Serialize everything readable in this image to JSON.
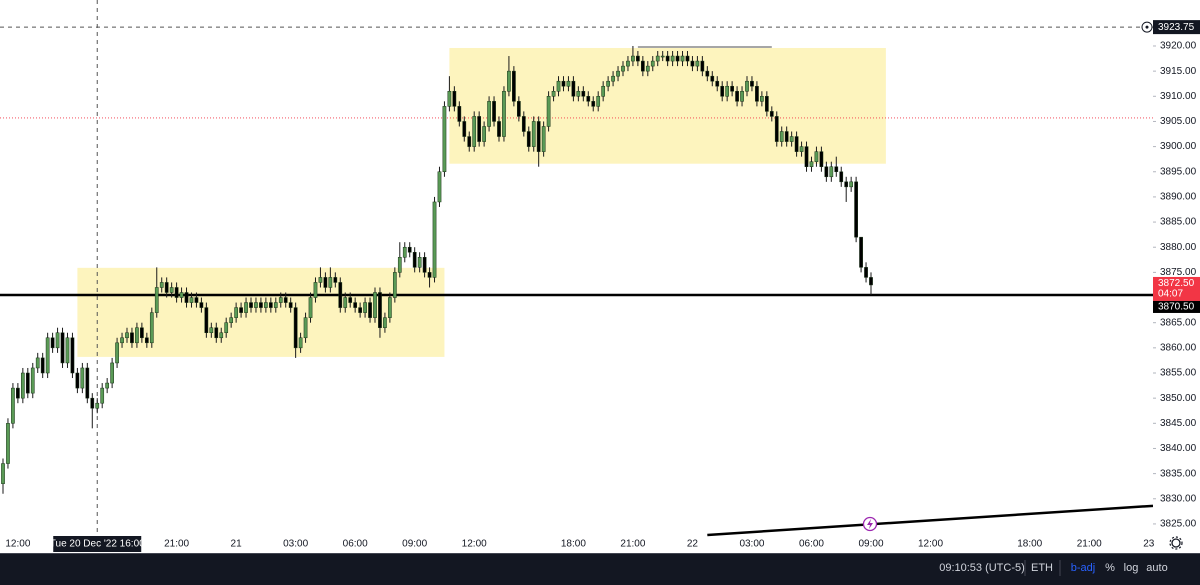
{
  "chart_data": {
    "type": "candlestick",
    "categories": [
      null,
      null,
      null,
      "12:00",
      null,
      null,
      null,
      null,
      null,
      null,
      null,
      null,
      null,
      null,
      null,
      null,
      null,
      null,
      null,
      "Tue 20 Dec '22  16:00",
      null,
      null,
      null,
      null,
      null,
      null,
      null,
      null,
      null,
      null,
      null,
      null,
      null,
      null,
      null,
      "21:00",
      null,
      null,
      null,
      null,
      null,
      null,
      null,
      null,
      null,
      null,
      null,
      "21",
      null,
      null,
      null,
      null,
      null,
      null,
      null,
      null,
      null,
      null,
      null,
      "03:00",
      null,
      null,
      null,
      null,
      null,
      null,
      null,
      null,
      null,
      null,
      null,
      "06:00",
      null,
      null,
      null,
      null,
      null,
      null,
      null,
      null,
      null,
      null,
      null,
      "09:00",
      null,
      null,
      null,
      null,
      null,
      null,
      null,
      null,
      null,
      null,
      null,
      "12:00",
      null,
      null,
      null,
      null,
      null,
      null,
      null,
      null,
      null,
      null,
      null,
      null,
      null,
      null,
      null,
      null,
      null,
      null,
      null,
      "18:00",
      null,
      null,
      null,
      null,
      null,
      null,
      null,
      null,
      null,
      null,
      null,
      "21:00",
      null,
      null,
      null,
      null,
      null,
      null,
      null,
      null,
      null,
      null,
      null,
      "22",
      null,
      null,
      null,
      null,
      null,
      null,
      null,
      null,
      null,
      null,
      null,
      "03:00",
      null,
      null,
      null,
      null,
      null,
      null,
      null,
      null,
      null,
      null,
      null,
      "06:00",
      null,
      null,
      null,
      null,
      null,
      null,
      null,
      null,
      null,
      null,
      null,
      "09:00",
      null,
      null,
      null,
      null,
      null,
      null,
      null,
      null,
      null,
      null,
      null,
      "12:00",
      null,
      null,
      null,
      null,
      null,
      null,
      null,
      null,
      null,
      null,
      null,
      null,
      null,
      null,
      null,
      null,
      null,
      null,
      null,
      "18:00",
      null,
      null,
      null,
      null,
      null,
      null,
      null,
      null,
      null,
      null,
      null,
      "21:00",
      null,
      null,
      null,
      null,
      null,
      null,
      null,
      null,
      null,
      null,
      null,
      "23"
    ],
    "open": [
      3833,
      3837,
      3845,
      3852,
      3850,
      3855,
      3851,
      3856,
      3858,
      3855,
      3862,
      3860,
      3863,
      3857,
      3862,
      3855,
      3852,
      3856,
      3850,
      3848,
      3849,
      3852,
      3853,
      3857,
      3861,
      3862,
      3863,
      3861,
      3864,
      3862,
      3861,
      3867,
      3872,
      3873,
      3871,
      3872,
      3870,
      3871,
      3869,
      3870,
      3869,
      3868,
      3863,
      3864,
      3862,
      3863,
      3865,
      3866,
      3868,
      3867,
      3869,
      3868,
      3869,
      3868,
      3869,
      3868,
      3869,
      3870,
      3869,
      3868,
      3860,
      3862,
      3866,
      3870,
      3873,
      3874,
      3872,
      3874,
      3873,
      3868,
      3870,
      3869,
      3868,
      3867,
      3869,
      3866,
      3871,
      3864,
      3866,
      3870,
      3875,
      3878,
      3880,
      3879,
      3876,
      3878,
      3875,
      3874,
      3889,
      3895,
      3908,
      3911,
      3908,
      3905,
      3902,
      3900,
      3906,
      3901,
      3904,
      3909,
      3905,
      3902,
      3911,
      3915,
      3909,
      3906,
      3903,
      3900,
      3905,
      3899,
      3904,
      3910,
      3911,
      3913,
      3912,
      3913,
      3910,
      3911,
      3910,
      3909,
      3908,
      3910,
      3912,
      3913,
      3914,
      3915,
      3916,
      3917,
      3918,
      3917,
      3915,
      3916,
      3917,
      3918,
      3918,
      3917,
      3918,
      3917,
      3918,
      3917,
      3916,
      3917,
      3915,
      3914,
      3913,
      3912,
      3910,
      3912,
      3911,
      3909,
      3911,
      3913,
      3912,
      3909,
      3910,
      3907,
      3906,
      3901,
      3903,
      3901,
      3902,
      3899,
      3900,
      3896,
      3897,
      3899,
      3896,
      3894,
      3896,
      3895,
      3893,
      3892,
      3893,
      3882,
      3876,
      3874,
      null,
      null,
      null,
      null,
      null,
      null,
      null,
      null,
      null,
      null,
      null,
      null,
      null,
      null,
      null,
      null,
      null,
      null,
      null,
      null,
      null,
      null,
      null,
      null,
      null,
      null,
      null,
      null,
      null,
      null,
      null,
      null,
      null,
      null,
      null,
      null,
      null,
      null,
      null,
      null,
      null,
      null,
      null,
      null,
      null,
      null,
      null,
      null,
      null,
      null,
      null,
      null,
      null,
      null,
      null,
      null
    ],
    "high": [
      3838,
      3846,
      3853,
      3853,
      3856,
      3856,
      3857,
      3859,
      3859,
      3863,
      3863,
      3864,
      3864,
      3863,
      3863,
      3856,
      3857,
      3857,
      3851,
      3850,
      3853,
      3854,
      3858,
      3862,
      3863,
      3864,
      3864,
      3865,
      3865,
      3863,
      3868,
      3876,
      3874,
      3874,
      3873,
      3873,
      3872,
      3872,
      3871,
      3871,
      3870,
      3869,
      3865,
      3865,
      3864,
      3866,
      3867,
      3869,
      3869,
      3870,
      3870,
      3870,
      3870,
      3870,
      3870,
      3870,
      3871,
      3871,
      3870,
      3869,
      3863,
      3867,
      3871,
      3874,
      3876,
      3875,
      3876,
      3875,
      3874,
      3871,
      3871,
      3870,
      3869,
      3870,
      3870,
      3872,
      3872,
      3867,
      3871,
      3876,
      3881,
      3881,
      3881,
      3880,
      3879,
      3879,
      3876,
      3890,
      3896,
      3909,
      3914,
      3912,
      3909,
      3906,
      3903,
      3907,
      3907,
      3905,
      3910,
      3910,
      3906,
      3912,
      3918,
      3916,
      3910,
      3907,
      3904,
      3906,
      3906,
      3905,
      3911,
      3912,
      3914,
      3914,
      3914,
      3914,
      3912,
      3912,
      3911,
      3910,
      3911,
      3913,
      3914,
      3915,
      3916,
      3917,
      3918,
      3920,
      3919,
      3918,
      3917,
      3918,
      3919,
      3919,
      3919,
      3919,
      3919,
      3919,
      3919,
      3918,
      3918,
      3918,
      3916,
      3915,
      3914,
      3913,
      3913,
      3913,
      3912,
      3912,
      3914,
      3914,
      3913,
      3911,
      3911,
      3908,
      3907,
      3904,
      3904,
      3903,
      3903,
      3901,
      3901,
      3898,
      3900,
      3900,
      3897,
      3897,
      3898,
      3896,
      3894,
      3894,
      3894,
      3881,
      3877,
      3875,
      null,
      null,
      null,
      null,
      null,
      null,
      null,
      null,
      null,
      null,
      null,
      null,
      null,
      null,
      null,
      null,
      null,
      null,
      null,
      null,
      null,
      null,
      null,
      null,
      null,
      null,
      null,
      null,
      null,
      null,
      null,
      null,
      null,
      null,
      null,
      null,
      null,
      null,
      null,
      null,
      null,
      null,
      null,
      null,
      null,
      null,
      null,
      null,
      null,
      null,
      null,
      null,
      null,
      null,
      null,
      null
    ],
    "low": [
      3831,
      3836,
      3844,
      3849,
      3849,
      3850,
      3850,
      3855,
      3854,
      3854,
      3859,
      3859,
      3856,
      3856,
      3854,
      3851,
      3851,
      3849,
      3844,
      3847,
      3848,
      3851,
      3852,
      3856,
      3860,
      3861,
      3860,
      3860,
      3861,
      3860,
      3860,
      3866,
      3871,
      3870,
      3870,
      3869,
      3869,
      3868,
      3868,
      3868,
      3867,
      3862,
      3862,
      3861,
      3861,
      3862,
      3864,
      3865,
      3866,
      3866,
      3867,
      3867,
      3867,
      3867,
      3867,
      3867,
      3868,
      3868,
      3867,
      3858,
      3859,
      3861,
      3865,
      3869,
      3872,
      3871,
      3871,
      3872,
      3867,
      3867,
      3868,
      3867,
      3866,
      3866,
      3865,
      3865,
      3862,
      3863,
      3865,
      3869,
      3874,
      3877,
      3878,
      3875,
      3875,
      3874,
      3872,
      3873,
      3888,
      3894,
      3907,
      3907,
      3904,
      3901,
      3899,
      3899,
      3900,
      3900,
      3903,
      3904,
      3901,
      3901,
      3910,
      3908,
      3905,
      3902,
      3899,
      3899,
      3896,
      3898,
      3903,
      3909,
      3910,
      3911,
      3911,
      3909,
      3909,
      3909,
      3908,
      3907,
      3907,
      3909,
      3911,
      3912,
      3913,
      3914,
      3915,
      3916,
      3916,
      3914,
      3914,
      3915,
      3916,
      3917,
      3916,
      3916,
      3916,
      3916,
      3916,
      3915,
      3915,
      3914,
      3913,
      3912,
      3911,
      3909,
      3909,
      3910,
      3908,
      3908,
      3910,
      3911,
      3908,
      3908,
      3906,
      3905,
      3900,
      3900,
      3900,
      3900,
      3898,
      3898,
      3895,
      3895,
      3896,
      3895,
      3893,
      3893,
      3894,
      3892,
      3889,
      3891,
      3881,
      3875,
      3873,
      3870.5,
      null,
      null,
      null,
      null,
      null,
      null,
      null,
      null,
      null,
      null,
      null,
      null,
      null,
      null,
      null,
      null,
      null,
      null,
      null,
      null,
      null,
      null,
      null,
      null,
      null,
      null,
      null,
      null,
      null,
      null,
      null,
      null,
      null,
      null,
      null,
      null,
      null,
      null,
      null,
      null,
      null,
      null,
      null,
      null,
      null,
      null,
      null,
      null,
      null,
      null,
      null,
      null,
      null,
      null,
      null,
      null
    ],
    "close": [
      3837,
      3845,
      3852,
      3850,
      3855,
      3851,
      3856,
      3858,
      3855,
      3862,
      3860,
      3863,
      3857,
      3862,
      3855,
      3852,
      3856,
      3850,
      3848,
      3849,
      3852,
      3853,
      3857,
      3861,
      3862,
      3863,
      3861,
      3864,
      3862,
      3861,
      3867,
      3872,
      3873,
      3871,
      3872,
      3870,
      3871,
      3869,
      3870,
      3869,
      3868,
      3863,
      3864,
      3862,
      3863,
      3865,
      3866,
      3868,
      3867,
      3869,
      3868,
      3869,
      3868,
      3869,
      3868,
      3869,
      3870,
      3869,
      3868,
      3860,
      3862,
      3866,
      3870,
      3873,
      3874,
      3872,
      3874,
      3873,
      3868,
      3870,
      3869,
      3868,
      3867,
      3869,
      3866,
      3871,
      3864,
      3866,
      3870,
      3875,
      3878,
      3880,
      3879,
      3876,
      3878,
      3875,
      3874,
      3889,
      3895,
      3908,
      3911,
      3908,
      3905,
      3902,
      3900,
      3906,
      3901,
      3904,
      3909,
      3905,
      3902,
      3911,
      3915,
      3909,
      3906,
      3903,
      3900,
      3905,
      3899,
      3904,
      3910,
      3911,
      3913,
      3912,
      3913,
      3910,
      3911,
      3910,
      3909,
      3908,
      3910,
      3912,
      3913,
      3914,
      3915,
      3916,
      3917,
      3918,
      3917,
      3915,
      3916,
      3917,
      3918,
      3918,
      3917,
      3918,
      3917,
      3918,
      3917,
      3916,
      3917,
      3915,
      3914,
      3913,
      3912,
      3910,
      3912,
      3911,
      3909,
      3911,
      3913,
      3912,
      3909,
      3910,
      3907,
      3906,
      3901,
      3903,
      3901,
      3902,
      3899,
      3900,
      3896,
      3897,
      3899,
      3896,
      3894,
      3896,
      3895,
      3893,
      3892,
      3893,
      3882,
      3876,
      3874,
      3872.5,
      null,
      null,
      null,
      null,
      null,
      null,
      null,
      null,
      null,
      null,
      null,
      null,
      null,
      null,
      null,
      null,
      null,
      null,
      null,
      null,
      null,
      null,
      null,
      null,
      null,
      null,
      null,
      null,
      null,
      null,
      null,
      null,
      null,
      null,
      null,
      null,
      null,
      null,
      null,
      null,
      null,
      null,
      null,
      null,
      null,
      null,
      null,
      null,
      null,
      null,
      null,
      null,
      null,
      null,
      null,
      null
    ],
    "up_color": "#5a9a56",
    "down_color": "#000000",
    "ylim": [
      3822.8,
      3929.14
    ],
    "yticks": [
      {
        "value": 3825,
        "label": "3825.00"
      },
      {
        "value": 3830,
        "label": "3830.00"
      },
      {
        "value": 3835,
        "label": "3835.00"
      },
      {
        "value": 3840,
        "label": "3840.00"
      },
      {
        "value": 3845,
        "label": "3845.00"
      },
      {
        "value": 3850,
        "label": "3850.00"
      },
      {
        "value": 3855,
        "label": "3855.00"
      },
      {
        "value": 3860,
        "label": "3860.00"
      },
      {
        "value": 3865,
        "label": "3865.00"
      },
      {
        "value": 3870,
        "label": "3870.00"
      },
      {
        "value": 3875,
        "label": "3875.00"
      },
      {
        "value": 3880,
        "label": "3880.00"
      },
      {
        "value": 3885,
        "label": "3885.00"
      },
      {
        "value": 3890,
        "label": "3890.00"
      },
      {
        "value": 3895,
        "label": "3895.00"
      },
      {
        "value": 3900,
        "label": "3900.00"
      },
      {
        "value": 3905,
        "label": "3905.00"
      },
      {
        "value": 3910,
        "label": "3910.00"
      },
      {
        "value": 3915,
        "label": "3915.00"
      },
      {
        "value": 3920,
        "label": "3920.00"
      }
    ],
    "grid": false,
    "log_scale": false,
    "zones": [
      {
        "from": 15,
        "to": 89,
        "top": 3875.9,
        "bottom": 3858.2,
        "color": "#fdf2b3"
      },
      {
        "from": 90,
        "to": 178,
        "top": 3919.6,
        "bottom": 3896.6,
        "color": "#fdf2b3"
      }
    ],
    "segments": [
      {
        "x": [
          128,
          155
        ],
        "y": [
          3919.8,
          3919.8
        ],
        "color": "#888888"
      },
      {
        "x": [
          142,
          232
        ],
        "y": [
          3822.8,
          3828.6
        ],
        "color": "#000000"
      }
    ],
    "hlines": [
      {
        "value": 3870.5,
        "label": "3870.50",
        "color": "#000000"
      },
      {
        "value": 3905.7,
        "color": "#f23645"
      }
    ],
    "last_price": {
      "value": 3872.5,
      "label": "3872.50",
      "countdown": "04:07",
      "color": "#f23645"
    },
    "crosshair": {
      "category": 19,
      "y": {
        "value": 3923.75,
        "label": "3923.75"
      }
    }
  },
  "status_bar": {
    "time": "09:10:53 (UTC-5)",
    "session": "ETH",
    "adjust": "b-adj",
    "percent": "%",
    "log": "log",
    "auto": "auto"
  }
}
